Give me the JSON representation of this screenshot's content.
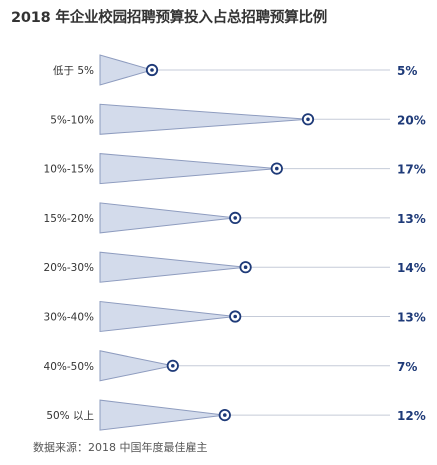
{
  "title": "2018 年企业校园招聘预算投入占总招聘预算比例",
  "source": "数据来源：2018 中国年度最佳雇主",
  "colors": {
    "triangle_fill": "#d3dbeb",
    "triangle_stroke": "#8e9cbf",
    "line": "#c5cbd8",
    "marker": "#1e3a78",
    "value_text": "#1e3a78"
  },
  "chart_data": {
    "type": "bar",
    "title": "2018 年企业校园招聘预算投入占总招聘预算比例",
    "categories": [
      "低于 5%",
      "5%-10%",
      "10%-15%",
      "15%-20%",
      "20%-30%",
      "30%-40%",
      "40%-50%",
      "50% 以上"
    ],
    "values": [
      5,
      20,
      17,
      13,
      14,
      13,
      7,
      12
    ],
    "value_labels": [
      "5%",
      "20%",
      "17%",
      "13%",
      "14%",
      "13%",
      "7%",
      "12%"
    ],
    "unit": "%",
    "orientation": "horizontal",
    "mark": "triangle",
    "xlim": [
      0,
      20
    ],
    "grid": false,
    "legend": "none"
  }
}
